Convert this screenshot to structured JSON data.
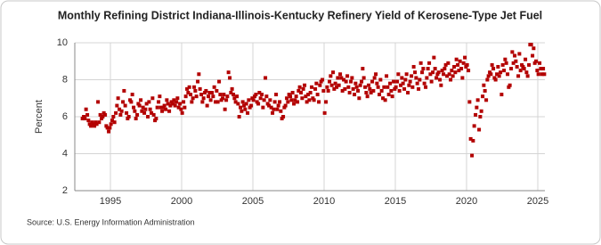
{
  "chart_data": {
    "type": "scatter",
    "title": "Monthly Refining District Indiana-Illinois-Kentucky Refinery Yield of Kerosene-Type Jet Fuel",
    "y_label": "Percent",
    "source": "Source: U.S. Energy Information Administration",
    "xlim": [
      1992.5,
      2025.5
    ],
    "xticks": [
      1995,
      2000,
      2005,
      2010,
      2015,
      2020,
      2025
    ],
    "ylim": [
      2,
      10
    ],
    "yticks": [
      2,
      4,
      6,
      8,
      10
    ],
    "grid": true,
    "series": [
      {
        "color": "#b30000",
        "x": [
          1993.04,
          1993.13,
          1993.21,
          1993.29,
          1993.38,
          1993.46,
          1993.54,
          1993.63,
          1993.71,
          1993.79,
          1993.88,
          1993.96,
          1994.04,
          1994.13,
          1994.21,
          1994.29,
          1994.38,
          1994.46,
          1994.54,
          1994.63,
          1994.71,
          1994.79,
          1994.88,
          1994.96,
          1995.04,
          1995.13,
          1995.21,
          1995.29,
          1995.38,
          1995.46,
          1995.54,
          1995.63,
          1995.71,
          1995.79,
          1995.88,
          1995.96,
          1996.04,
          1996.13,
          1996.21,
          1996.29,
          1996.38,
          1996.46,
          1996.54,
          1996.63,
          1996.71,
          1996.79,
          1996.88,
          1996.96,
          1997.04,
          1997.13,
          1997.21,
          1997.29,
          1997.38,
          1997.46,
          1997.54,
          1997.63,
          1997.71,
          1997.79,
          1997.88,
          1997.96,
          1998.04,
          1998.13,
          1998.21,
          1998.29,
          1998.38,
          1998.46,
          1998.54,
          1998.63,
          1998.71,
          1998.79,
          1998.88,
          1998.96,
          1999.04,
          1999.13,
          1999.21,
          1999.29,
          1999.38,
          1999.46,
          1999.54,
          1999.63,
          1999.71,
          1999.79,
          1999.88,
          1999.96,
          2000.04,
          2000.13,
          2000.21,
          2000.29,
          2000.38,
          2000.46,
          2000.54,
          2000.63,
          2000.71,
          2000.79,
          2000.88,
          2000.96,
          2001.04,
          2001.13,
          2001.21,
          2001.29,
          2001.38,
          2001.46,
          2001.54,
          2001.63,
          2001.71,
          2001.79,
          2001.88,
          2001.96,
          2002.04,
          2002.13,
          2002.21,
          2002.29,
          2002.38,
          2002.46,
          2002.54,
          2002.63,
          2002.71,
          2002.79,
          2002.88,
          2002.96,
          2003.04,
          2003.13,
          2003.21,
          2003.29,
          2003.38,
          2003.46,
          2003.54,
          2003.63,
          2003.71,
          2003.79,
          2003.88,
          2003.96,
          2004.04,
          2004.13,
          2004.21,
          2004.29,
          2004.38,
          2004.46,
          2004.54,
          2004.63,
          2004.71,
          2004.79,
          2004.88,
          2004.96,
          2005.04,
          2005.13,
          2005.21,
          2005.29,
          2005.38,
          2005.46,
          2005.54,
          2005.63,
          2005.71,
          2005.79,
          2005.88,
          2005.96,
          2006.04,
          2006.13,
          2006.21,
          2006.29,
          2006.38,
          2006.46,
          2006.54,
          2006.63,
          2006.71,
          2006.79,
          2006.88,
          2006.96,
          2007.04,
          2007.13,
          2007.21,
          2007.29,
          2007.38,
          2007.46,
          2007.54,
          2007.63,
          2007.71,
          2007.79,
          2007.88,
          2007.96,
          2008.04,
          2008.13,
          2008.21,
          2008.29,
          2008.38,
          2008.46,
          2008.54,
          2008.63,
          2008.71,
          2008.79,
          2008.88,
          2008.96,
          2009.04,
          2009.13,
          2009.21,
          2009.29,
          2009.38,
          2009.46,
          2009.54,
          2009.63,
          2009.71,
          2009.79,
          2009.88,
          2009.96,
          2010.04,
          2010.13,
          2010.21,
          2010.29,
          2010.38,
          2010.46,
          2010.54,
          2010.63,
          2010.71,
          2010.79,
          2010.88,
          2010.96,
          2011.04,
          2011.13,
          2011.21,
          2011.29,
          2011.38,
          2011.46,
          2011.54,
          2011.63,
          2011.71,
          2011.79,
          2011.88,
          2011.96,
          2012.04,
          2012.13,
          2012.21,
          2012.29,
          2012.38,
          2012.46,
          2012.54,
          2012.63,
          2012.71,
          2012.79,
          2012.88,
          2012.96,
          2013.04,
          2013.13,
          2013.21,
          2013.29,
          2013.38,
          2013.46,
          2013.54,
          2013.63,
          2013.71,
          2013.79,
          2013.88,
          2013.96,
          2014.04,
          2014.13,
          2014.21,
          2014.29,
          2014.38,
          2014.46,
          2014.54,
          2014.63,
          2014.71,
          2014.79,
          2014.88,
          2014.96,
          2015.04,
          2015.13,
          2015.21,
          2015.29,
          2015.38,
          2015.46,
          2015.54,
          2015.63,
          2015.71,
          2015.79,
          2015.88,
          2015.96,
          2016.04,
          2016.13,
          2016.21,
          2016.29,
          2016.38,
          2016.46,
          2016.54,
          2016.63,
          2016.71,
          2016.79,
          2016.88,
          2016.96,
          2017.04,
          2017.13,
          2017.21,
          2017.29,
          2017.38,
          2017.46,
          2017.54,
          2017.63,
          2017.71,
          2017.79,
          2017.88,
          2017.96,
          2018.04,
          2018.13,
          2018.21,
          2018.29,
          2018.38,
          2018.46,
          2018.54,
          2018.63,
          2018.71,
          2018.79,
          2018.88,
          2018.96,
          2019.04,
          2019.13,
          2019.21,
          2019.29,
          2019.38,
          2019.46,
          2019.54,
          2019.63,
          2019.71,
          2019.79,
          2019.88,
          2019.96,
          2020.04,
          2020.13,
          2020.21,
          2020.29,
          2020.38,
          2020.46,
          2020.54,
          2020.63,
          2020.71,
          2020.79,
          2020.88,
          2020.96,
          2021.04,
          2021.13,
          2021.21,
          2021.29,
          2021.38,
          2021.46,
          2021.54,
          2021.63,
          2021.71,
          2021.79,
          2021.88,
          2021.96,
          2022.04,
          2022.13,
          2022.21,
          2022.29,
          2022.38,
          2022.46,
          2022.54,
          2022.63,
          2022.71,
          2022.79,
          2022.88,
          2022.96,
          2023.04,
          2023.13,
          2023.21,
          2023.29,
          2023.38,
          2023.46,
          2023.54,
          2023.63,
          2023.71,
          2023.79,
          2023.88,
          2023.96,
          2024.04,
          2024.13,
          2024.21,
          2024.29,
          2024.38,
          2024.46,
          2024.54,
          2024.63,
          2024.71,
          2024.79,
          2024.88,
          2024.96,
          2025.04,
          2025.13,
          2025.21,
          2025.29,
          2025.38,
          2025.46
        ],
        "values": [
          5.9,
          6.0,
          5.9,
          6.4,
          6.1,
          5.8,
          5.6,
          5.5,
          5.7,
          5.6,
          5.5,
          5.7,
          5.6,
          6.8,
          5.7,
          6.1,
          5.9,
          6.0,
          6.2,
          6.1,
          5.5,
          5.4,
          5.2,
          5.4,
          5.6,
          5.8,
          6.0,
          5.7,
          6.2,
          6.6,
          7.0,
          6.4,
          6.1,
          6.3,
          6.8,
          7.4,
          6.6,
          6.2,
          5.9,
          6.0,
          6.9,
          6.8,
          7.2,
          6.5,
          6.3,
          5.9,
          6.1,
          6.7,
          6.6,
          6.9,
          6.3,
          6.5,
          6.2,
          6.4,
          6.7,
          6.0,
          6.8,
          6.4,
          6.2,
          7.0,
          6.1,
          5.8,
          5.9,
          6.5,
          6.8,
          7.1,
          6.5,
          6.3,
          6.5,
          6.6,
          6.4,
          6.9,
          6.7,
          6.3,
          6.6,
          6.8,
          6.7,
          6.9,
          6.6,
          6.8,
          7.0,
          6.5,
          6.7,
          6.4,
          6.2,
          6.8,
          6.5,
          7.1,
          7.5,
          7.3,
          7.6,
          7.2,
          6.8,
          7.0,
          7.6,
          7.4,
          7.1,
          7.9,
          8.3,
          7.5,
          7.2,
          6.8,
          7.0,
          7.3,
          7.4,
          6.6,
          7.1,
          7.3,
          6.9,
          7.3,
          7.1,
          7.6,
          6.8,
          7.4,
          6.8,
          7.9,
          7.2,
          6.9,
          7.0,
          7.2,
          6.4,
          6.9,
          7.1,
          8.4,
          8.1,
          7.3,
          7.5,
          7.2,
          7.0,
          6.8,
          7.1,
          6.7,
          6.0,
          6.5,
          6.3,
          6.8,
          6.6,
          6.4,
          6.7,
          6.2,
          6.9,
          6.5,
          6.6,
          7.0,
          6.9,
          7.1,
          7.2,
          6.8,
          6.7,
          7.3,
          7.0,
          7.2,
          6.5,
          6.9,
          8.1,
          7.1,
          6.7,
          6.6,
          6.9,
          6.5,
          6.2,
          6.4,
          6.8,
          7.2,
          6.4,
          6.6,
          6.8,
          6.3,
          5.9,
          6.0,
          6.5,
          6.6,
          7.0,
          6.8,
          7.2,
          7.1,
          6.9,
          7.3,
          6.7,
          6.9,
          7.1,
          6.8,
          7.4,
          7.6,
          7.3,
          7.0,
          7.5,
          7.7,
          7.1,
          6.8,
          7.2,
          6.9,
          7.3,
          7.6,
          7.0,
          6.9,
          7.5,
          7.8,
          7.2,
          6.8,
          7.7,
          7.9,
          8.0,
          7.4,
          6.2,
          6.8,
          7.6,
          7.4,
          7.9,
          8.2,
          7.7,
          8.4,
          7.5,
          7.8,
          7.6,
          8.1,
          7.7,
          8.3,
          8.1,
          7.4,
          8.0,
          7.5,
          7.9,
          8.2,
          7.6,
          7.3,
          7.9,
          8.1,
          7.5,
          7.2,
          7.8,
          7.6,
          7.4,
          7.0,
          7.7,
          7.9,
          8.6,
          8.1,
          7.6,
          7.3,
          7.1,
          7.7,
          7.5,
          7.3,
          7.9,
          7.4,
          8.1,
          8.3,
          7.8,
          7.6,
          7.2,
          8.0,
          7.4,
          7.0,
          7.6,
          6.9,
          8.2,
          7.6,
          7.2,
          7.8,
          7.4,
          7.1,
          7.9,
          7.5,
          7.6,
          7.9,
          8.3,
          7.4,
          7.7,
          8.1,
          7.8,
          7.5,
          8.0,
          8.3,
          7.3,
          7.7,
          7.9,
          8.2,
          7.6,
          8.7,
          8.4,
          8.1,
          7.8,
          7.5,
          8.0,
          8.9,
          8.4,
          8.6,
          7.8,
          7.6,
          8.1,
          8.6,
          8.9,
          8.3,
          7.9,
          8.4,
          9.2,
          8.6,
          8.1,
          8.3,
          8.4,
          8.0,
          7.7,
          8.5,
          8.3,
          8.6,
          8.8,
          8.2,
          8.9,
          8.3,
          8.0,
          8.5,
          8.2,
          8.7,
          8.4,
          9.1,
          8.8,
          8.5,
          9.0,
          8.6,
          8.1,
          8.9,
          9.2,
          8.7,
          8.8,
          8.5,
          6.8,
          4.8,
          3.9,
          4.7,
          5.5,
          6.1,
          6.5,
          6.9,
          5.3,
          6.0,
          6.3,
          7.1,
          7.7,
          7.4,
          6.9,
          8.0,
          8.2,
          8.4,
          8.3,
          8.8,
          8.6,
          8.1,
          8.0,
          8.3,
          8.7,
          8.2,
          8.4,
          7.2,
          8.8,
          8.5,
          9.1,
          8.9,
          8.3,
          7.6,
          7.7,
          8.6,
          9.5,
          8.9,
          9.3,
          9.0,
          8.7,
          8.2,
          9.4,
          8.5,
          8.8,
          8.7,
          8.6,
          9.1,
          8.4,
          8.2,
          8.8,
          9.9,
          9.9,
          9.3,
          9.7,
          8.9,
          9.0,
          8.5,
          8.3,
          8.9,
          8.6,
          8.3,
          8.6,
          8.3
        ]
      }
    ]
  }
}
